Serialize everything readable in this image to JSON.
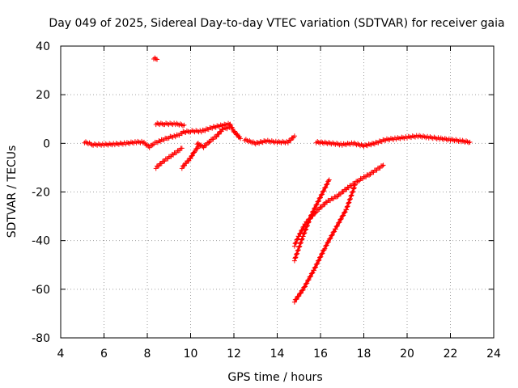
{
  "chart_data": {
    "type": "scatter",
    "title": "Day 049 of 2025, Sidereal Day-to-day VTEC variation (SDTVAR) for receiver gaia",
    "xlabel": "GPS time / hours",
    "ylabel": "SDTVAR / TECUs",
    "xlim": [
      4,
      24
    ],
    "ylim": [
      -80,
      40
    ],
    "xticks": [
      4,
      6,
      8,
      10,
      12,
      14,
      16,
      18,
      20,
      22,
      24
    ],
    "yticks": [
      -80,
      -60,
      -40,
      -20,
      0,
      20,
      40
    ],
    "xtick_labels": [
      "4",
      "6",
      "8",
      "10",
      "12",
      "14",
      "16",
      "18",
      "20",
      "22",
      "24"
    ],
    "ytick_labels": [
      "-80",
      "-60",
      "-40",
      "-20",
      "0",
      "20",
      "40"
    ],
    "grid": true,
    "marker": "+",
    "series": [
      {
        "name": "main-trace-a",
        "x": [
          5.1,
          5.5,
          6.0,
          6.5,
          7.0,
          7.5,
          7.8,
          8.1,
          8.3,
          8.6,
          9.0,
          9.3,
          9.6
        ],
        "y": [
          0.5,
          -0.5,
          -0.5,
          -0.3,
          0.0,
          0.5,
          0.5,
          -1.5,
          0.0,
          1.0,
          2.5,
          3.0,
          4.0
        ]
      },
      {
        "name": "main-trace-b",
        "x": [
          9.6,
          10.0,
          10.5,
          11.0,
          11.5,
          11.8,
          12.0,
          12.3
        ],
        "y": [
          4.5,
          5.0,
          5.0,
          6.5,
          7.5,
          8.0,
          5.0,
          2.0
        ]
      },
      {
        "name": "main-trace-c",
        "x": [
          12.5,
          13.0,
          13.5,
          14.0,
          14.5,
          14.8
        ],
        "y": [
          1.5,
          0.0,
          1.0,
          0.5,
          0.5,
          3.0
        ]
      },
      {
        "name": "main-trace-d",
        "x": [
          15.8,
          16.5,
          17.0,
          17.5,
          18.0,
          18.5,
          19.0,
          19.5,
          20.0,
          20.5,
          21.0,
          21.5,
          22.0,
          22.5,
          22.9
        ],
        "y": [
          0.5,
          0.0,
          -0.5,
          0.0,
          -1.0,
          0.0,
          1.5,
          2.0,
          2.5,
          3.0,
          2.5,
          2.0,
          1.5,
          1.0,
          0.5
        ]
      },
      {
        "name": "segment-8-9",
        "x": [
          8.4,
          8.8,
          9.3,
          9.7
        ],
        "y": [
          8.0,
          8.0,
          8.0,
          7.5
        ]
      },
      {
        "name": "segment-descend-1",
        "x": [
          8.4,
          8.8,
          9.2,
          9.6
        ],
        "y": [
          -10.0,
          -7.0,
          -4.5,
          -2.0
        ]
      },
      {
        "name": "segment-descend-2",
        "x": [
          9.6,
          9.8,
          10.0,
          10.2,
          10.4
        ],
        "y": [
          -10.0,
          -8.0,
          -6.0,
          -3.0,
          -1.0
        ]
      },
      {
        "name": "segment-wiggle",
        "x": [
          10.3,
          10.6,
          10.9,
          11.2,
          11.5,
          11.8
        ],
        "y": [
          0.0,
          -1.5,
          1.0,
          3.0,
          6.0,
          6.5
        ]
      },
      {
        "name": "outlier",
        "x": [
          8.3,
          8.45
        ],
        "y": [
          35.0,
          34.5
        ]
      },
      {
        "name": "drop-a",
        "x": [
          14.8,
          15.2,
          15.6,
          16.0,
          16.4
        ],
        "y": [
          -48.0,
          -38.0,
          -29.0,
          -22.0,
          -15.0
        ]
      },
      {
        "name": "drop-b",
        "x": [
          14.8,
          15.0,
          15.3,
          15.8,
          16.3,
          16.8,
          17.3,
          17.8,
          18.3,
          18.9
        ],
        "y": [
          -42.0,
          -38.0,
          -33.0,
          -28.0,
          -24.0,
          -21.5,
          -18.0,
          -15.0,
          -12.5,
          -9.0
        ]
      },
      {
        "name": "drop-c",
        "x": [
          14.8,
          15.2,
          15.7,
          16.2,
          16.7,
          17.2,
          17.6
        ],
        "y": [
          -65.0,
          -60.0,
          -52.0,
          -43.0,
          -35.0,
          -27.0,
          -17.0
        ]
      }
    ]
  }
}
